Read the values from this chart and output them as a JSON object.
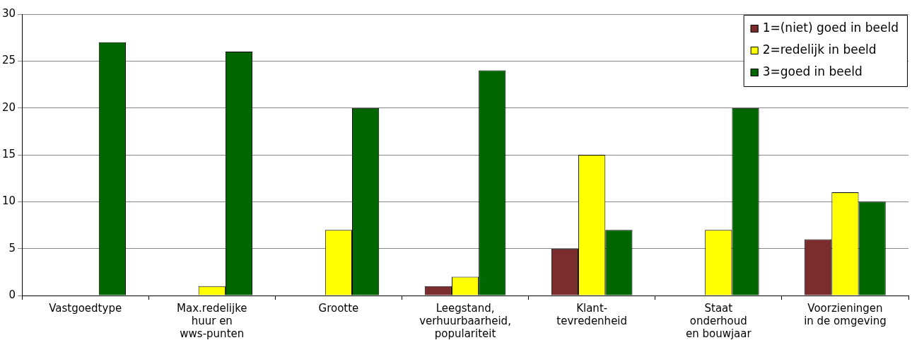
{
  "chart_data": {
    "type": "bar",
    "categories": [
      "Vastgoedtype",
      "Max.redelijke\nhuur en\nwws-punten",
      "Grootte",
      "Leegstand,\nverhuurbaarheid,\npopulariteit",
      "Klant-\ntevredenheid",
      "Staat\nonderhoud\nen bouwjaar",
      "Voorzieningen\nin de omgeving"
    ],
    "series": [
      {
        "name": "1=(niet) goed in beeld",
        "color": "#7b2c2c",
        "values": [
          0,
          0,
          0,
          1,
          5,
          0,
          6
        ]
      },
      {
        "name": "2=redelijk in beeld",
        "color": "#ffff00",
        "values": [
          0,
          1,
          7,
          2,
          15,
          7,
          11
        ]
      },
      {
        "name": "3=goed in beeld",
        "color": "#006600",
        "values": [
          27,
          26,
          20,
          24,
          7,
          20,
          10
        ]
      }
    ],
    "ylim": [
      0,
      30
    ],
    "yticks": [
      0,
      5,
      10,
      15,
      20,
      25,
      30
    ],
    "grid": "y",
    "legend": "top right"
  }
}
